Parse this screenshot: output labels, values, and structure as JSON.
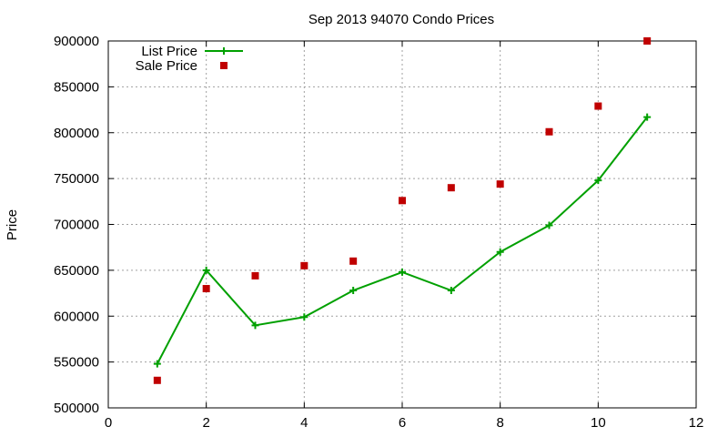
{
  "chart_data": {
    "type": "line",
    "title": "Sep 2013 94070 Condo Prices",
    "xlabel": "",
    "ylabel": "Price",
    "xlim": [
      0,
      12
    ],
    "ylim": [
      500000,
      900000
    ],
    "xticks": [
      "0",
      "2",
      "4",
      "6",
      "8",
      "10",
      "12"
    ],
    "yticks": [
      "500000",
      "550000",
      "600000",
      "650000",
      "700000",
      "750000",
      "800000",
      "850000",
      "900000"
    ],
    "grid": true,
    "legend_position": "top-left",
    "series": [
      {
        "name": "List Price",
        "style": "line-with-plus-markers",
        "color": "#00a000",
        "x": [
          1,
          2,
          3,
          4,
          5,
          6,
          7,
          8,
          9,
          10,
          11
        ],
        "y": [
          548000,
          650000,
          590000,
          599000,
          628000,
          648000,
          628000,
          670000,
          699000,
          748000,
          817000
        ]
      },
      {
        "name": "Sale Price",
        "style": "square-markers",
        "color": "#c00000",
        "x": [
          1,
          2,
          3,
          4,
          5,
          6,
          7,
          8,
          9,
          10,
          11
        ],
        "y": [
          530000,
          630000,
          644000,
          655000,
          660000,
          726000,
          740000,
          744000,
          801000,
          829000,
          900000
        ]
      }
    ]
  }
}
